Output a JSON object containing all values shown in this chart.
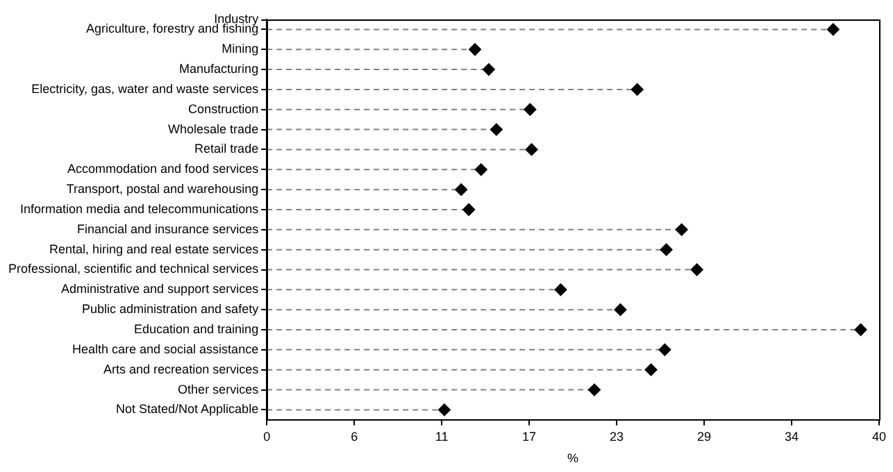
{
  "chart_data": {
    "type": "lollipop",
    "orientation": "horizontal",
    "ylabel": "Industry",
    "xlabel": "%",
    "categories": [
      "Agriculture, forestry and fishing",
      "Mining",
      "Manufacturing",
      "Electricity, gas, water and waste services",
      "Construction",
      "Wholesale trade",
      "Retail trade",
      "Accommodation and food services",
      "Transport, postal and warehousing",
      "Information media and telecommunications",
      "Financial and insurance services",
      "Rental, hiring and real estate services",
      "Professional, scientific and technical services",
      "Administrative and support services",
      "Public administration and safety",
      "Education and training",
      "Health care and social assistance",
      "Arts and recreation services",
      "Other services",
      "Not Stated/Not Applicable"
    ],
    "values": [
      37.0,
      13.6,
      14.5,
      24.2,
      17.2,
      15.0,
      17.3,
      14.0,
      12.7,
      13.2,
      27.1,
      26.1,
      28.1,
      19.2,
      23.1,
      38.8,
      26.0,
      25.1,
      21.4,
      11.6
    ],
    "color": "#000000",
    "marker": "diamond",
    "line_style": "dashed",
    "xlim": [
      0,
      40
    ],
    "xticks": [
      0,
      {
        "value": 5.714,
        "label": "6"
      },
      {
        "value": 11.429,
        "label": "11"
      },
      {
        "value": 17.143,
        "label": "17"
      },
      {
        "value": 22.857,
        "label": "23"
      },
      {
        "value": 28.571,
        "label": "29"
      },
      {
        "value": 34.286,
        "label": "34"
      },
      40
    ],
    "grid": false,
    "legend": false
  }
}
